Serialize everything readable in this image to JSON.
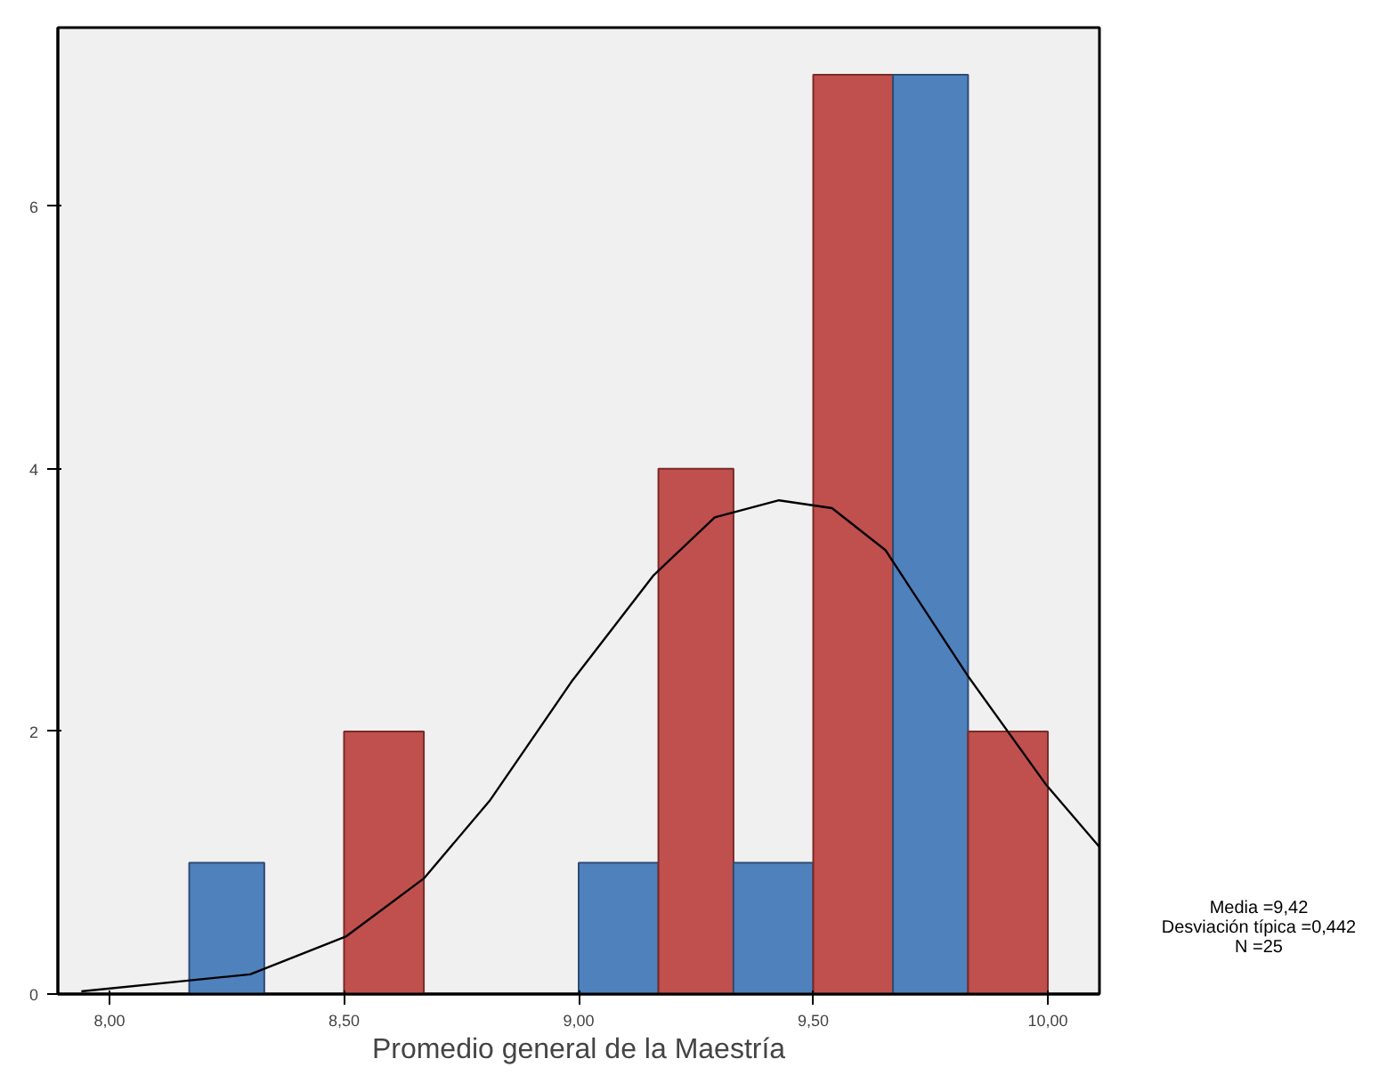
{
  "chart_data": {
    "type": "histogram",
    "xlabel": "Promedio general de la Maestría",
    "bins": [
      8.17,
      8.33,
      8.5,
      8.67,
      9.0,
      9.17,
      9.33,
      9.5,
      9.67,
      9.83,
      10.0
    ],
    "values": [
      1,
      0,
      2,
      0,
      1,
      4,
      1,
      7,
      7,
      2
    ],
    "colors": [
      "#4f81bd",
      null,
      "#c0504d",
      null,
      "#4f81bd",
      "#c0504d",
      "#4f81bd",
      "#c0504d",
      "#4f81bd",
      "#c0504d"
    ],
    "series": [
      {
        "type": "line",
        "color": "#000000",
        "x": [
          7.94,
          8.3,
          8.505,
          8.67,
          8.81,
          8.985,
          9.16,
          9.29,
          9.427,
          9.54,
          9.654,
          9.83,
          9.995,
          10.11
        ],
        "values": [
          0.02,
          0.15,
          0.44,
          0.88,
          1.47,
          2.38,
          3.19,
          3.63,
          3.76,
          3.7,
          3.38,
          2.42,
          1.6,
          1.12
        ]
      }
    ],
    "xlim": [
      7.89,
      10.11
    ],
    "ylim": [
      0,
      7.36
    ],
    "xticks": [
      {
        "value": 8.0,
        "label": "8,00"
      },
      {
        "value": 8.5,
        "label": "8,50"
      },
      {
        "value": 9.0,
        "label": "9,00"
      },
      {
        "value": 9.5,
        "label": "9,50"
      },
      {
        "value": 10.0,
        "label": "10,00"
      }
    ],
    "yticks": [
      0,
      2,
      4,
      6
    ],
    "grid": false,
    "annotations": [
      "Media =9,42",
      "Desviación típica =0,442",
      "N =25"
    ]
  }
}
